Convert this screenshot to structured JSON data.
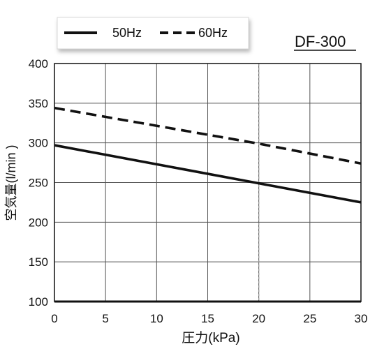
{
  "chart_data": {
    "type": "line",
    "title": "DF-300",
    "xlabel": "圧力(kPa)",
    "ylabel": "空気量(l/min )",
    "x": [
      0,
      30
    ],
    "xlim": [
      0,
      30
    ],
    "ylim": [
      100,
      400
    ],
    "xticks": [
      0,
      5,
      10,
      15,
      20,
      25,
      30
    ],
    "yticks": [
      100,
      150,
      200,
      250,
      300,
      350,
      400
    ],
    "grid": true,
    "legend_position": "top-left",
    "reference_line_x": 20,
    "series": [
      {
        "name": "50Hz",
        "style": "solid",
        "color": "#111111",
        "x": [
          0,
          20,
          30
        ],
        "y": [
          297,
          249,
          225
        ]
      },
      {
        "name": "60Hz",
        "style": "dashed",
        "color": "#111111",
        "x": [
          0,
          20,
          30
        ],
        "y": [
          344,
          299,
          274
        ]
      }
    ]
  }
}
